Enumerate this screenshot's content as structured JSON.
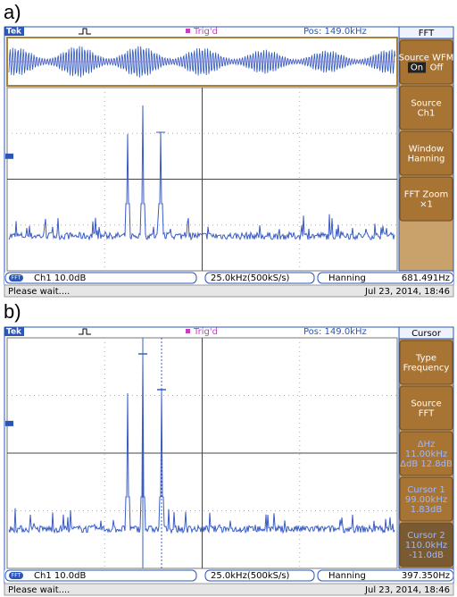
{
  "panels": [
    {
      "label": "a)",
      "header": {
        "brand": "Tek",
        "trigger": "Trig'd",
        "position": "Pos: 149.0kHz"
      },
      "menu": {
        "title": "FFT",
        "buttons": [
          {
            "lines": [
              "Source WFM"
            ],
            "toggle": [
              "On",
              "Off"
            ]
          },
          {
            "lines": [
              "Source",
              "Ch1"
            ]
          },
          {
            "lines": [
              "Window",
              "Hanning"
            ]
          },
          {
            "lines": [
              "FFT Zoom",
              "×1"
            ]
          }
        ]
      },
      "status": {
        "badge": "FFT",
        "channel": "Ch1  10.0dB",
        "timebase": "25.0kHz(500kS/s)",
        "window": "Hanning",
        "readout": "681.491Hz"
      },
      "footer": {
        "message": "Please wait....",
        "datetime": "Jul 23, 2014, 18:46"
      }
    },
    {
      "label": "b)",
      "header": {
        "brand": "Tek",
        "trigger": "Trig'd",
        "position": "Pos: 149.0kHz"
      },
      "menu": {
        "title": "Cursor",
        "buttons": [
          {
            "lines": [
              "Type",
              "Frequency"
            ]
          },
          {
            "lines": [
              "Source",
              "FFT"
            ]
          },
          {
            "lines": [
              "ΔHz",
              "11.00kHz",
              "ΔdB 12.8dB"
            ]
          },
          {
            "lines": [
              "Cursor 1",
              "99.00kHz",
              "1.83dB"
            ]
          },
          {
            "lines": [
              "Cursor 2",
              "110.0kHz",
              "-11.0dB"
            ]
          }
        ]
      },
      "status": {
        "badge": "FFT",
        "channel": "Ch1  10.0dB",
        "timebase": "25.0kHz(500kS/s)",
        "window": "Hanning",
        "readout": "397.350Hz"
      },
      "footer": {
        "message": "Please wait....",
        "datetime": "Jul 23, 2014, 18:46"
      }
    }
  ]
}
